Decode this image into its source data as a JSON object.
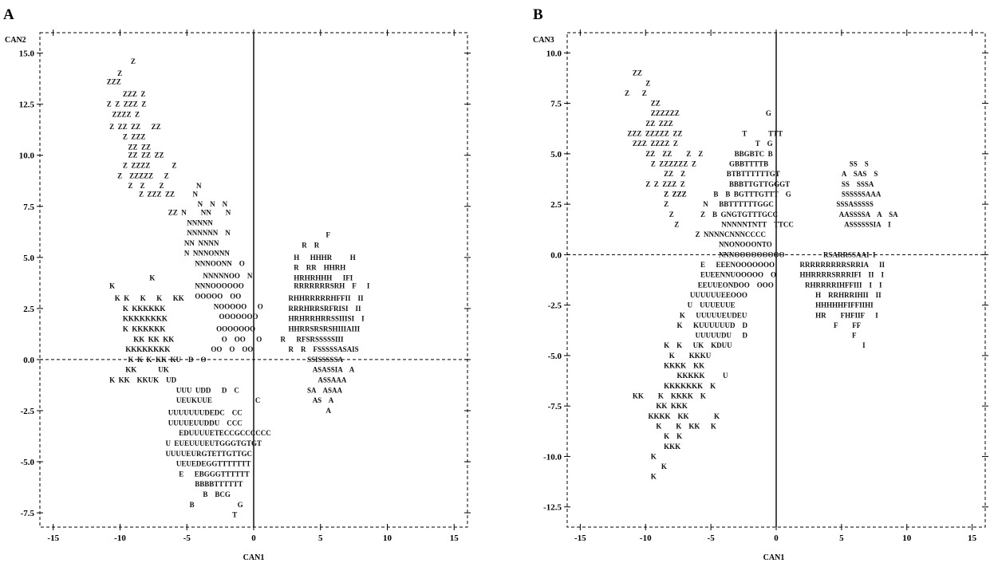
{
  "chart_data": [
    {
      "type": "scatter",
      "panel_label": "A",
      "xlabel": "CAN1",
      "ylabel": "CAN2",
      "xlim": [
        -16,
        16
      ],
      "ylim": [
        -8.2,
        16.0
      ],
      "xticks": [
        -15,
        -10,
        -5,
        0,
        5,
        10,
        15
      ],
      "yticks": [
        -7.5,
        -5.0,
        -2.5,
        0.0,
        2.5,
        5.0,
        7.5,
        10.0,
        12.5,
        15.0
      ],
      "x_tick_labels": [
        "-15",
        "-10",
        "-5",
        "0",
        "5",
        "10",
        "15"
      ],
      "y_tick_labels": [
        "-7.5",
        "-5.0",
        "-2.5",
        "0.0",
        "2.5",
        "5.0",
        "7.5",
        "10.0",
        "12.5",
        "15.0"
      ],
      "reference_lines": {
        "x0": "solid",
        "y0": "dashed"
      },
      "rows": [
        {
          "y": 14.6,
          "x": -9.2,
          "text": "Z"
        },
        {
          "y": 14.0,
          "x": -10.2,
          "text": "Z"
        },
        {
          "y": 13.6,
          "x": -11.0,
          "text": "ZZZ"
        },
        {
          "y": 13.0,
          "x": -9.8,
          "text": "ZZZ  Z"
        },
        {
          "y": 12.5,
          "x": -11.0,
          "text": "Z  Z  ZZZ  Z"
        },
        {
          "y": 12.0,
          "x": -10.6,
          "text": "ZZZZ  Z"
        },
        {
          "y": 11.4,
          "x": -10.8,
          "text": "Z  ZZ  ZZ      ZZ"
        },
        {
          "y": 10.9,
          "x": -9.8,
          "text": "Z  ZZZ"
        },
        {
          "y": 10.4,
          "x": -9.4,
          "text": "ZZ  ZZ"
        },
        {
          "y": 10.0,
          "x": -9.4,
          "text": "ZZ  ZZ  ZZ"
        },
        {
          "y": 9.5,
          "x": -9.8,
          "text": "Z  ZZZZ            Z"
        },
        {
          "y": 9.0,
          "x": -10.2,
          "text": "Z    ZZZZZ      Z"
        },
        {
          "y": 8.5,
          "x": -9.4,
          "text": "Z    Z        Z                  N"
        },
        {
          "y": 8.1,
          "x": -8.6,
          "text": "Z  ZZZ  ZZ          N"
        },
        {
          "y": 7.6,
          "x": -4.2,
          "text": "N    N    N"
        },
        {
          "y": 7.2,
          "x": -6.4,
          "text": "ZZ  N        NN        N"
        },
        {
          "y": 6.7,
          "x": -5.0,
          "text": "NNNNN"
        },
        {
          "y": 6.2,
          "x": -5.0,
          "text": "NNNNNN    N"
        },
        {
          "y": 5.7,
          "x": -5.2,
          "text": "NN  NNNN"
        },
        {
          "y": 5.2,
          "x": -5.2,
          "text": "N  NNNONNN"
        },
        {
          "y": 4.7,
          "x": -4.4,
          "text": "NNNOONN    O"
        },
        {
          "y": 4.1,
          "x": -3.8,
          "text": "NNNNNOO    N"
        },
        {
          "y": 3.6,
          "x": -4.4,
          "text": "NNNOOOOOO"
        },
        {
          "y": 3.1,
          "x": -4.4,
          "text": "OOOOO    OO"
        },
        {
          "y": 2.6,
          "x": -3.0,
          "text": "NOOOOO      O"
        },
        {
          "y": 2.1,
          "x": -2.6,
          "text": "OOOOOOO"
        },
        {
          "y": 1.5,
          "x": -2.8,
          "text": "OOOOOOO"
        },
        {
          "y": 1.0,
          "x": -2.4,
          "text": "O    OO      O"
        },
        {
          "y": 0.5,
          "x": -3.2,
          "text": "OO    O    OO"
        },
        {
          "y": 4.0,
          "x": -7.8,
          "text": "K"
        },
        {
          "y": 3.6,
          "x": -10.8,
          "text": "K"
        },
        {
          "y": 3.0,
          "x": -10.4,
          "text": "K  K      K      K      KK"
        },
        {
          "y": 2.5,
          "x": -9.8,
          "text": "K  KKKKKK"
        },
        {
          "y": 2.0,
          "x": -9.8,
          "text": "KKKKKKKK"
        },
        {
          "y": 1.5,
          "x": -9.8,
          "text": "K  KKKKKK"
        },
        {
          "y": 1.0,
          "x": -9.0,
          "text": "KK  KK  KK"
        },
        {
          "y": 0.5,
          "x": -9.6,
          "text": "KKKKKKKK"
        },
        {
          "y": 0.0,
          "x": -9.4,
          "text": "K  K  K  KK  KU    D    O"
        },
        {
          "y": -0.5,
          "x": -9.6,
          "text": "KK            UK"
        },
        {
          "y": -1.0,
          "x": -10.8,
          "text": "K  KK    KKUK    UD"
        },
        {
          "y": -1.5,
          "x": -5.8,
          "text": "UUU  UDD      D    C"
        },
        {
          "y": -2.0,
          "x": -5.8,
          "text": "UEUKUUE                        C"
        },
        {
          "y": -2.6,
          "x": -6.4,
          "text": "UUUUUUUDEDC    CC"
        },
        {
          "y": -3.1,
          "x": -6.4,
          "text": "UUUUEUUDDU    CCC"
        },
        {
          "y": -3.6,
          "x": -5.6,
          "text": "EDUUUUETECCGCCCCCC"
        },
        {
          "y": -4.1,
          "x": -6.6,
          "text": "U  EUEUUUEUTGGGTGTGT"
        },
        {
          "y": -4.6,
          "x": -6.6,
          "text": "UUUUEURGTETTGTTGC"
        },
        {
          "y": -5.1,
          "x": -5.8,
          "text": "UEUEDEGGTTTTTTT"
        },
        {
          "y": -5.6,
          "x": -5.6,
          "text": "E      EBGGGTTTTTT"
        },
        {
          "y": -6.1,
          "x": -4.4,
          "text": "BBBBTTTTTT"
        },
        {
          "y": -6.6,
          "x": -3.8,
          "text": "B    BCG"
        },
        {
          "y": -7.1,
          "x": -4.8,
          "text": "B                        G"
        },
        {
          "y": -7.6,
          "x": -1.6,
          "text": "T"
        },
        {
          "y": 6.1,
          "x": 5.4,
          "text": "F"
        },
        {
          "y": 5.6,
          "x": 3.6,
          "text": "R    R"
        },
        {
          "y": 5.0,
          "x": 3.0,
          "text": "H      HHHR          H"
        },
        {
          "y": 4.5,
          "x": 3.0,
          "text": "R    RR    HHRH"
        },
        {
          "y": 4.0,
          "x": 3.0,
          "text": "HRHRHHH      IFI"
        },
        {
          "y": 3.6,
          "x": 3.0,
          "text": "RRRRRRRSRH    F      I"
        },
        {
          "y": 3.0,
          "x": 2.6,
          "text": "RHHRRRRRHFFII    II"
        },
        {
          "y": 2.5,
          "x": 2.6,
          "text": "RRRHRRSRFRISI    II"
        },
        {
          "y": 2.0,
          "x": 2.6,
          "text": "HRHRRHRRSSIIISI    I"
        },
        {
          "y": 1.5,
          "x": 2.6,
          "text": "HHRRSRSRSHIIIAIII"
        },
        {
          "y": 1.0,
          "x": 2.0,
          "text": "R      RFSRSSSSSIII"
        },
        {
          "y": 0.5,
          "x": 2.6,
          "text": "R    R    FSSSSSASAIS"
        },
        {
          "y": 0.0,
          "x": 4.0,
          "text": "SSISSSSSA"
        },
        {
          "y": -0.5,
          "x": 4.4,
          "text": "ASASSIA    A"
        },
        {
          "y": -1.0,
          "x": 4.8,
          "text": "ASSAAA"
        },
        {
          "y": -1.5,
          "x": 4.0,
          "text": "SA    ASAA"
        },
        {
          "y": -2.0,
          "x": 4.4,
          "text": "AS    A"
        },
        {
          "y": -2.5,
          "x": 5.4,
          "text": "A"
        }
      ]
    },
    {
      "type": "scatter",
      "panel_label": "B",
      "xlabel": "CAN1",
      "ylabel": "CAN3",
      "xlim": [
        -16,
        16
      ],
      "ylim": [
        -13.5,
        11.0
      ],
      "xticks": [
        -15,
        -10,
        -5,
        0,
        5,
        10,
        15
      ],
      "yticks": [
        -12.5,
        -10.0,
        -7.5,
        -5.0,
        -2.5,
        0.0,
        2.5,
        5.0,
        7.5,
        10.0
      ],
      "x_tick_labels": [
        "-15",
        "-10",
        "-5",
        "0",
        "5",
        "10",
        "15"
      ],
      "y_tick_labels": [
        "-12.5",
        "-10.0",
        "-7.5",
        "-5.0",
        "-2.5",
        "0.0",
        "2.5",
        "5.0",
        "7.5",
        "10.0"
      ],
      "reference_lines": {
        "x0": "solid",
        "y0": "dashed"
      },
      "rows": [
        {
          "y": 9.0,
          "x": -11.0,
          "text": "ZZ"
        },
        {
          "y": 8.5,
          "x": -10.0,
          "text": "Z"
        },
        {
          "y": 8.0,
          "x": -11.6,
          "text": "Z       Z"
        },
        {
          "y": 7.5,
          "x": -9.6,
          "text": "ZZ"
        },
        {
          "y": 7.0,
          "x": -9.6,
          "text": "ZZZZZZ"
        },
        {
          "y": 6.5,
          "x": -10.0,
          "text": "ZZ  ZZZ"
        },
        {
          "y": 6.0,
          "x": -11.4,
          "text": "ZZZ  ZZZZZ  ZZ"
        },
        {
          "y": 5.5,
          "x": -11.0,
          "text": "ZZZ  ZZZZ  Z"
        },
        {
          "y": 5.0,
          "x": -10.0,
          "text": "ZZ    ZZ        Z    Z"
        },
        {
          "y": 4.5,
          "x": -9.6,
          "text": "Z  ZZZZZZ  Z"
        },
        {
          "y": 4.0,
          "x": -8.6,
          "text": "ZZ    Z"
        },
        {
          "y": 3.5,
          "x": -10.0,
          "text": "Z  Z  ZZZ  Z"
        },
        {
          "y": 3.0,
          "x": -8.6,
          "text": "Z  ZZZ"
        },
        {
          "y": 2.5,
          "x": -8.6,
          "text": "Z"
        },
        {
          "y": 2.0,
          "x": -8.2,
          "text": "Z"
        },
        {
          "y": 1.5,
          "x": -7.8,
          "text": "Z"
        },
        {
          "y": 1.0,
          "x": -6.2,
          "text": "Z  NNNNCNNNCCCC"
        },
        {
          "y": 7.0,
          "x": -0.8,
          "text": "G"
        },
        {
          "y": 6.0,
          "x": -2.6,
          "text": "T            TTT"
        },
        {
          "y": 5.5,
          "x": -1.6,
          "text": "T    G"
        },
        {
          "y": 5.0,
          "x": -3.2,
          "text": "BBGBTC  B"
        },
        {
          "y": 4.5,
          "x": -3.6,
          "text": "GBBTTTTB"
        },
        {
          "y": 4.0,
          "x": -3.8,
          "text": "BTBTTTTTTGT"
        },
        {
          "y": 3.5,
          "x": -3.6,
          "text": "BBBTTGTTGGGT"
        },
        {
          "y": 3.0,
          "x": -4.8,
          "text": "B    B  BGTTTGTTT    G"
        },
        {
          "y": 3.0,
          "x": -8.6,
          "text": "Z  ZZZ"
        },
        {
          "y": 2.5,
          "x": -5.6,
          "text": "N      BBTTTTTTGGC"
        },
        {
          "y": 2.0,
          "x": -5.8,
          "text": "Z    B  GNGTGTTTGCC"
        },
        {
          "y": 1.5,
          "x": -4.2,
          "text": "NNNNNTNTT    TTCC"
        },
        {
          "y": 0.5,
          "x": -4.4,
          "text": "NNONOOONTO"
        },
        {
          "y": 0.0,
          "x": -4.4,
          "text": "NNNOOOOOOOOO"
        },
        {
          "y": -0.5,
          "x": -5.8,
          "text": "E      EEENOOOOOOO"
        },
        {
          "y": -1.0,
          "x": -5.8,
          "text": "EUEENNUOOOOO    O"
        },
        {
          "y": -1.5,
          "x": -6.0,
          "text": "EEUUEONDOO    OOO"
        },
        {
          "y": -2.0,
          "x": -6.6,
          "text": "UUUUUUEEOOO"
        },
        {
          "y": -2.5,
          "x": -6.8,
          "text": "U    UUUEUUE"
        },
        {
          "y": -3.0,
          "x": -7.4,
          "text": "K      UUUUUEUDEU"
        },
        {
          "y": -3.5,
          "x": -7.6,
          "text": "K      KUUUUUUD    D"
        },
        {
          "y": -4.0,
          "x": -6.2,
          "text": "UUUUUDU      D"
        },
        {
          "y": -4.5,
          "x": -8.6,
          "text": "K    K      UK    KDUU"
        },
        {
          "y": -5.0,
          "x": -8.2,
          "text": "K        KKKU"
        },
        {
          "y": -5.5,
          "x": -8.6,
          "text": "KKKK    KK"
        },
        {
          "y": -6.0,
          "x": -7.6,
          "text": "KKKKK          U"
        },
        {
          "y": -6.5,
          "x": -8.6,
          "text": "KKKKKKK    K"
        },
        {
          "y": -7.0,
          "x": -11.0,
          "text": "KK        K    KKKK    K"
        },
        {
          "y": -7.5,
          "x": -9.2,
          "text": "KK  KKK"
        },
        {
          "y": -8.0,
          "x": -9.8,
          "text": "KKKK    KK              K"
        },
        {
          "y": -8.5,
          "x": -9.2,
          "text": "K        K    KK      K"
        },
        {
          "y": -9.0,
          "x": -8.6,
          "text": "K    K"
        },
        {
          "y": -9.5,
          "x": -8.6,
          "text": "KKK"
        },
        {
          "y": -10.0,
          "x": -9.6,
          "text": "K"
        },
        {
          "y": -10.5,
          "x": -8.8,
          "text": "K"
        },
        {
          "y": -11.0,
          "x": -9.6,
          "text": "K"
        },
        {
          "y": 4.5,
          "x": 5.6,
          "text": "SS    S"
        },
        {
          "y": 4.0,
          "x": 5.0,
          "text": "A    SAS    S"
        },
        {
          "y": 3.5,
          "x": 5.0,
          "text": "SS    SSSA"
        },
        {
          "y": 3.0,
          "x": 5.0,
          "text": "SSSSSSAAA"
        },
        {
          "y": 2.5,
          "x": 4.6,
          "text": "SSSASSSSS"
        },
        {
          "y": 2.0,
          "x": 4.8,
          "text": "AASSSSA    A    SA"
        },
        {
          "y": 1.5,
          "x": 5.2,
          "text": "ASSSSSSIA    I"
        },
        {
          "y": 0.0,
          "x": 3.6,
          "text": "RSARRSSAAI  I"
        },
        {
          "y": -0.5,
          "x": 1.8,
          "text": "RRRRRRRRRSRRIA      II"
        },
        {
          "y": -1.0,
          "x": 1.8,
          "text": "HHRRRRSRRRIFI    II    I"
        },
        {
          "y": -1.5,
          "x": 2.2,
          "text": "RHRRRRIHFFIII    I    I"
        },
        {
          "y": -2.0,
          "x": 3.0,
          "text": "H    RRHRRIHII    II"
        },
        {
          "y": -2.5,
          "x": 3.0,
          "text": "HHHHHFIFFIIHI"
        },
        {
          "y": -3.0,
          "x": 3.0,
          "text": "HR        FHFIIF      I"
        },
        {
          "y": -3.5,
          "x": 4.4,
          "text": "F        FF"
        },
        {
          "y": -4.0,
          "x": 5.8,
          "text": "F"
        },
        {
          "y": -4.5,
          "x": 6.6,
          "text": "I"
        }
      ]
    }
  ]
}
